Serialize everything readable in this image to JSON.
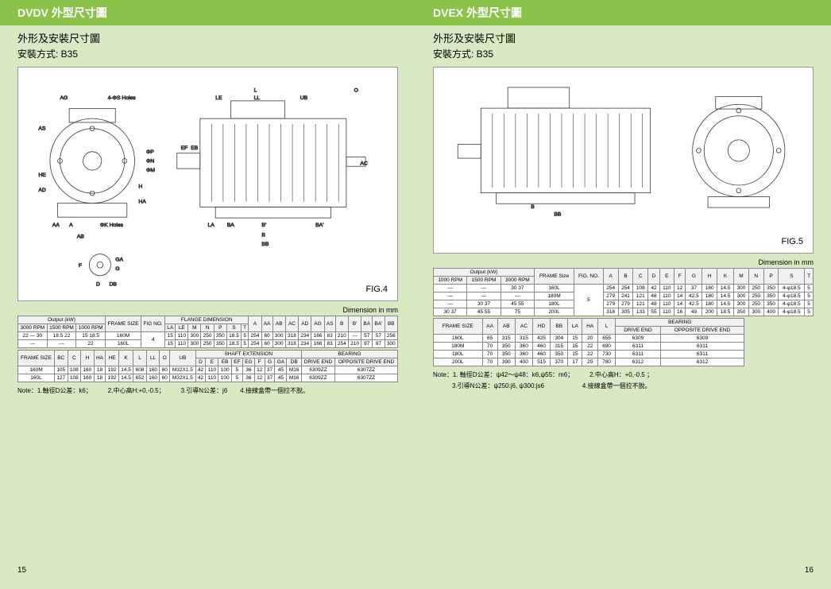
{
  "left": {
    "header": "DVDV  外型尺寸圖",
    "title": "外形及安裝尺寸圖",
    "subtitle": "安裝方式: B35",
    "fig_label": "FIG.4",
    "dim_unit": "Dimension in mm",
    "table1_headers_top": {
      "output": "Output (kW)",
      "frame": "FRAME SIZE",
      "fig_no": "FIG NO.",
      "flange": "FLANGE DIMENSION"
    },
    "table1_cols": [
      "3000 RPM",
      "1500 RPM",
      "1000 RPM",
      "",
      "",
      "LA",
      "LE",
      "M",
      "N",
      "P",
      "S",
      "T",
      "A",
      "AA",
      "AB",
      "AC",
      "AD",
      "AG",
      "AS",
      "B",
      "B'",
      "BA",
      "BA'",
      "BB"
    ],
    "table1_rows": [
      [
        "22 — 30",
        "18.5 22",
        "15 18.5",
        "160M",
        "4",
        "15",
        "110",
        "300",
        "250",
        "350",
        "18.5",
        "5",
        "254",
        "60",
        "300",
        "318",
        "234",
        "166",
        "83",
        "210",
        "---",
        "57",
        "57",
        "256"
      ],
      [
        "---",
        "---",
        "22",
        "160L",
        "",
        "15",
        "110",
        "300",
        "250",
        "350",
        "18.5",
        "5",
        "254",
        "60",
        "300",
        "318",
        "234",
        "166",
        "83",
        "254",
        "210",
        "97",
        "97",
        "300"
      ]
    ],
    "table2_headers": {
      "frame": "FRAME SIZE",
      "shaft": "SHAFT  EXTENSION",
      "bearing": "BEARING"
    },
    "table2_cols": [
      "",
      "BC",
      "C",
      "H",
      "HA",
      "HE",
      "K",
      "L",
      "LL",
      "O",
      "UB",
      "D",
      "E",
      "EB",
      "EF",
      "EG",
      "F",
      "G",
      "GA",
      "DB",
      "DRIVE END",
      "OPPOSITE DRIVE END"
    ],
    "table2_rows": [
      [
        "160M",
        "105",
        "108",
        "160",
        "18",
        "192",
        "14.5",
        "608",
        "160",
        "60",
        "M32X1.5",
        "42",
        "110",
        "100",
        "5",
        "36",
        "12",
        "37",
        "45",
        "M16",
        "6309ZZ",
        "6307ZZ"
      ],
      [
        "160L",
        "127",
        "108",
        "160",
        "18",
        "192",
        "14.5",
        "652",
        "160",
        "60",
        "M32X1.5",
        "42",
        "110",
        "100",
        "5",
        "36",
        "12",
        "37",
        "45",
        "M16",
        "6309ZZ",
        "6307ZZ"
      ]
    ],
    "note": "Note：1.軸徑D公差：k6；　　　2.中心高H:+0,-0.5；　　　3.引導N公差：j6　　4.接線盒帶一個拉不脫。",
    "pagenum": "15"
  },
  "right": {
    "header": "DVEX  外型尺寸圖",
    "title": "外形及安裝尺寸圖",
    "subtitle": "安裝方式: B35",
    "fig_label": "FIG.5",
    "dim_unit": "Dimension in mm",
    "table1_headers": {
      "output": "Output (kW)",
      "frame": "FRAME Size",
      "fig_no": "FIG. NO."
    },
    "table1_cols": [
      "1000 RPM",
      "1500 RPM",
      "3000 RPM",
      "",
      "",
      "A",
      "B",
      "C",
      "D",
      "E",
      "F",
      "G",
      "H",
      "K",
      "M",
      "N",
      "P",
      "S",
      "T"
    ],
    "table1_rows": [
      [
        "—",
        "—",
        "30 37",
        "160L",
        "5",
        "254",
        "254",
        "108",
        "42",
        "110",
        "12",
        "37",
        "160",
        "14.5",
        "300",
        "250",
        "350",
        "4-φ18.5",
        "5"
      ],
      [
        "—",
        "—",
        "—",
        "180M",
        "",
        "279",
        "241",
        "121",
        "48",
        "110",
        "14",
        "42.5",
        "180",
        "14.5",
        "300",
        "250",
        "350",
        "4-φ18.5",
        "5"
      ],
      [
        "—",
        "30 37",
        "45 55",
        "180L",
        "",
        "279",
        "279",
        "121",
        "48",
        "110",
        "14",
        "42.5",
        "180",
        "14.5",
        "300",
        "250",
        "350",
        "4-φ18.5",
        "5"
      ],
      [
        "30 37",
        "45 55",
        "75",
        "200L",
        "",
        "318",
        "305",
        "133",
        "55",
        "110",
        "16",
        "49",
        "200",
        "18.5",
        "350",
        "300",
        "400",
        "4-φ18.5",
        "5"
      ]
    ],
    "table2_headers": {
      "frame": "FRAME SIZE",
      "bearing": "BEARING"
    },
    "table2_cols": [
      "",
      "AA",
      "AB",
      "AC",
      "HD",
      "BB",
      "LA",
      "HA",
      "L",
      "DRIVE END",
      "OPPOSITE DRIVE END"
    ],
    "table2_rows": [
      [
        "160L",
        "65",
        "315",
        "315",
        "425",
        "304",
        "15",
        "20",
        "655",
        "6309",
        "6309"
      ],
      [
        "180M",
        "70",
        "350",
        "360",
        "460",
        "315",
        "15",
        "22",
        "690",
        "6311",
        "6311"
      ],
      [
        "180L",
        "70",
        "350",
        "360",
        "460",
        "350",
        "15",
        "22",
        "730",
        "6311",
        "6311"
      ],
      [
        "200L",
        "70",
        "390",
        "400",
        "515",
        "370",
        "17",
        "25",
        "780",
        "6312",
        "6312"
      ]
    ],
    "note1": "Note：1. 軸徑D公差：ψ42～ψ48：k6,ψ55：m6；　　　2.中心高H：+0,-0.5 ；",
    "note2": "　　　3.引導N公差：ψ250:j6, ψ300:js6　　　　　　4.接線盒帶一個拉不脫。",
    "pagenum": "16"
  },
  "colors": {
    "page_bg": "#d9e9c4",
    "header_bg": "#8bc34a",
    "header_fg": "#ffffff",
    "border": "#888888",
    "diagram_stroke": "#333333"
  }
}
